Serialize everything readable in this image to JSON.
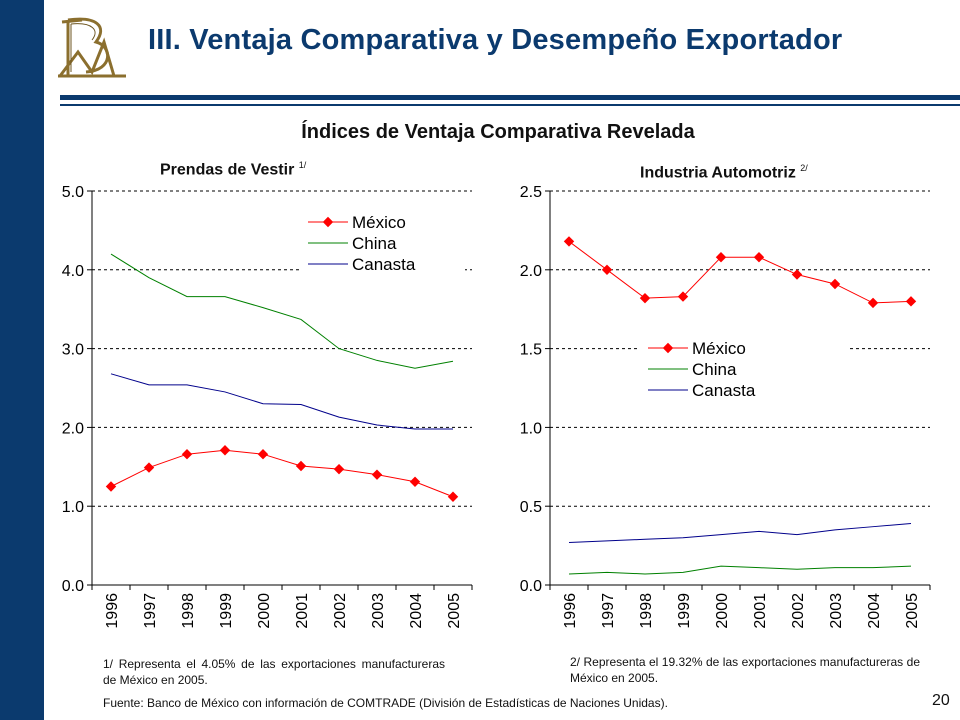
{
  "slide": {
    "title": "III. Ventaja Comparativa y Desempeño Exportador",
    "section_title": "Índices de Ventaja Comparativa Revelada",
    "page_number": "20",
    "source": "Fuente: Banco de México con información de COMTRADE (División de Estadísticas de Naciones Unidas).",
    "colors": {
      "accent": "#0b3a6e",
      "logo_gold": "#8b6f2e"
    }
  },
  "chart_data": [
    {
      "type": "line",
      "title": "Prendas de Vestir",
      "title_note": "1/",
      "xlabel": "",
      "ylabel": "",
      "categories": [
        "1996",
        "1997",
        "1998",
        "1999",
        "2000",
        "2001",
        "2002",
        "2003",
        "2004",
        "2005"
      ],
      "ylim": [
        0,
        5
      ],
      "yticks": [
        "0.0",
        "1.0",
        "2.0",
        "3.0",
        "4.0",
        "5.0"
      ],
      "grid": "dashed horizontal",
      "legend": "top-right",
      "series": [
        {
          "name": "México",
          "color": "#ff0000",
          "marker": "diamond",
          "values": [
            1.25,
            1.49,
            1.66,
            1.71,
            1.66,
            1.51,
            1.47,
            1.4,
            1.31,
            1.12
          ]
        },
        {
          "name": "China",
          "color": "#008000",
          "marker": "none",
          "values": [
            4.2,
            3.9,
            3.66,
            3.66,
            3.52,
            3.37,
            3.0,
            2.85,
            2.75,
            2.84
          ]
        },
        {
          "name": "Canasta",
          "color": "#00008b",
          "marker": "none",
          "values": [
            2.68,
            2.54,
            2.54,
            2.45,
            2.3,
            2.29,
            2.13,
            2.03,
            1.98,
            1.98
          ]
        }
      ],
      "footnote": "1/ Representa el 4.05% de las exportaciones manufactureras de México en 2005."
    },
    {
      "type": "line",
      "title": "Industria Automotriz",
      "title_note": "2/",
      "xlabel": "",
      "ylabel": "",
      "categories": [
        "1996",
        "1997",
        "1998",
        "1999",
        "2000",
        "2001",
        "2002",
        "2003",
        "2004",
        "2005"
      ],
      "ylim": [
        0,
        2.5
      ],
      "yticks": [
        "0.0",
        "0.5",
        "1.0",
        "1.5",
        "2.0",
        "2.5"
      ],
      "grid": "dashed horizontal",
      "legend": "center-right",
      "series": [
        {
          "name": "México",
          "color": "#ff0000",
          "marker": "diamond",
          "values": [
            2.18,
            2.0,
            1.82,
            1.83,
            2.08,
            2.08,
            1.97,
            1.91,
            1.79,
            1.8
          ]
        },
        {
          "name": "China",
          "color": "#008000",
          "marker": "none",
          "values": [
            0.07,
            0.08,
            0.07,
            0.08,
            0.12,
            0.11,
            0.1,
            0.11,
            0.11,
            0.12
          ]
        },
        {
          "name": "Canasta",
          "color": "#00008b",
          "marker": "none",
          "values": [
            0.27,
            0.28,
            0.29,
            0.3,
            0.32,
            0.34,
            0.32,
            0.35,
            0.37,
            0.39
          ]
        }
      ],
      "footnote": "2/ Representa el 19.32% de las exportaciones manufactureras de México en 2005."
    }
  ]
}
